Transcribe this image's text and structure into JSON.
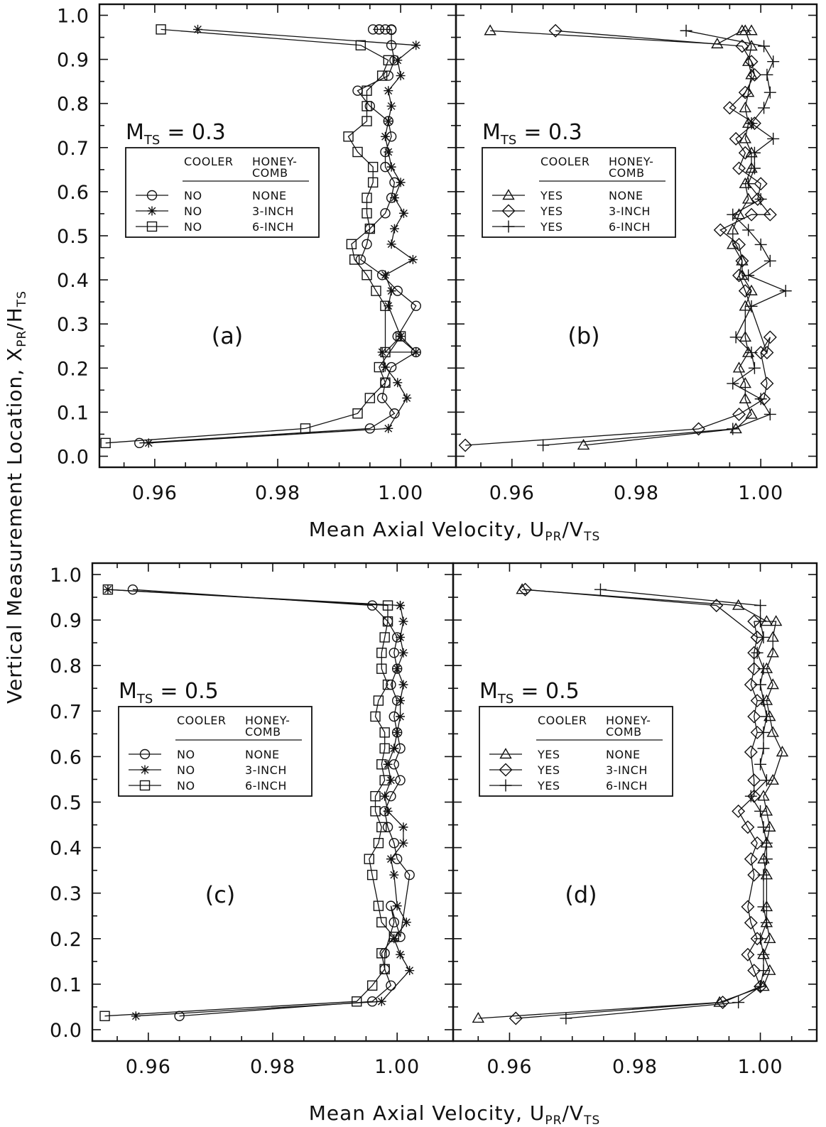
{
  "figure": {
    "ylabel": "Vertical Measurement Location, X_PR/H_TS",
    "xlabel": "Mean Axial Velocity, U_PR/V_TS"
  },
  "chart_data": [
    {
      "type": "line",
      "panel_label": "(a)",
      "mts_prefix": "M",
      "mts_sub": "TS",
      "mts_value": "= 0.3",
      "xlim": [
        0.951,
        1.009
      ],
      "ylim": [
        -0.025,
        1.025
      ],
      "xticks": [
        0.96,
        0.98,
        1.0
      ],
      "xtick_labels": [
        "0.96",
        "0.98",
        "1.00"
      ],
      "yticks": [
        0.0,
        0.1,
        0.2,
        0.3,
        0.4,
        0.5,
        0.6,
        0.7,
        0.8,
        0.9,
        1.0
      ],
      "ytick_labels": [
        "0.0",
        "0.1",
        "0.2",
        "0.3",
        "0.4",
        "0.5",
        "0.6",
        "0.7",
        "0.8",
        "0.9",
        "1.0"
      ],
      "grid": false,
      "legend": {
        "placement": "upper-left",
        "header_cooler": "COOLER",
        "header_honey_1": "HONEY-",
        "header_honey_2": "COMB",
        "rows": [
          {
            "cooler": "NO",
            "honeycomb": "NONE",
            "marker": "circle"
          },
          {
            "cooler": "NO",
            "honeycomb": "3-INCH",
            "marker": "asterisk"
          },
          {
            "cooler": "NO",
            "honeycomb": "6-INCH",
            "marker": "square"
          }
        ]
      },
      "series": [
        {
          "marker": "circle",
          "x": [
            0.9575,
            0.995,
            0.999,
            0.997,
            0.9975,
            0.9985,
            1.0025,
            0.9995,
            1.0025,
            0.9995,
            0.997,
            0.9935,
            0.9945,
            0.995,
            0.9975,
            0.9985,
            0.999,
            0.9975,
            0.9975,
            0.9985,
            0.998,
            0.995,
            0.993,
            0.998,
            0.999,
            0.9985,
            0.9985,
            0.9975,
            0.9985,
            0.9955,
            0.9965,
            0.9965
          ],
          "y": [
            0.03,
            0.063,
            0.097,
            0.132,
            0.167,
            0.202,
            0.236,
            0.272,
            0.341,
            0.375,
            0.411,
            0.446,
            0.481,
            0.516,
            0.551,
            0.586,
            0.621,
            0.656,
            0.69,
            0.725,
            0.76,
            0.794,
            0.829,
            0.863,
            0.898,
            0.932,
            0.967,
            0.968,
            0.968,
            0.968,
            0.968,
            0.968
          ]
        },
        {
          "marker": "asterisk",
          "x": [
            0.959,
            0.998,
            1.001,
            0.9995,
            0.9975,
            0.997,
            1.0025,
            1.0,
            0.998,
            0.9985,
            0.9975,
            1.002,
            0.9985,
            0.999,
            1.0005,
            0.999,
            1.0,
            0.9985,
            0.998,
            0.9975,
            0.998,
            0.9985,
            0.998,
            1.0,
            0.9995,
            1.0025,
            0.967
          ],
          "y": [
            0.03,
            0.063,
            0.132,
            0.167,
            0.202,
            0.236,
            0.236,
            0.272,
            0.341,
            0.375,
            0.411,
            0.446,
            0.481,
            0.516,
            0.551,
            0.586,
            0.621,
            0.656,
            0.69,
            0.725,
            0.76,
            0.794,
            0.829,
            0.863,
            0.898,
            0.932,
            0.968
          ]
        },
        {
          "marker": "square",
          "x": [
            0.952,
            0.9845,
            0.993,
            0.995,
            0.9975,
            0.9965,
            1.0,
            0.9975,
            0.9975,
            0.996,
            0.9945,
            0.9925,
            0.992,
            0.995,
            0.9945,
            0.9945,
            0.9955,
            0.9955,
            0.993,
            0.9915,
            0.9945,
            0.9945,
            0.9945,
            0.997,
            0.998,
            0.9935,
            0.961
          ],
          "y": [
            0.03,
            0.063,
            0.097,
            0.132,
            0.167,
            0.202,
            0.272,
            0.236,
            0.341,
            0.375,
            0.411,
            0.446,
            0.481,
            0.516,
            0.551,
            0.586,
            0.621,
            0.656,
            0.69,
            0.725,
            0.76,
            0.794,
            0.829,
            0.863,
            0.898,
            0.932,
            0.968
          ]
        }
      ]
    },
    {
      "type": "line",
      "panel_label": "(b)",
      "mts_prefix": "M",
      "mts_sub": "TS",
      "mts_value": "= 0.3",
      "xlim": [
        0.951,
        1.009
      ],
      "ylim": [
        -0.025,
        1.025
      ],
      "xticks": [
        0.96,
        0.98,
        1.0
      ],
      "xtick_labels": [
        "0.96",
        "0.98",
        "1.00"
      ],
      "yticks": [
        0.0,
        0.1,
        0.2,
        0.3,
        0.4,
        0.5,
        0.6,
        0.7,
        0.8,
        0.9,
        1.0
      ],
      "ytick_labels": [],
      "grid": false,
      "legend": {
        "placement": "upper-left",
        "header_cooler": "COOLER",
        "header_honey_1": "HONEY-",
        "header_honey_2": "COMB",
        "rows": [
          {
            "cooler": "YES",
            "honeycomb": "NONE",
            "marker": "triangle"
          },
          {
            "cooler": "YES",
            "honeycomb": "3-INCH",
            "marker": "diamond"
          },
          {
            "cooler": "YES",
            "honeycomb": "6-INCH",
            "marker": "plus"
          }
        ]
      },
      "series": [
        {
          "marker": "triangle",
          "x": [
            0.9715,
            0.996,
            0.9985,
            0.9975,
            0.9975,
            0.9965,
            0.998,
            0.9975,
            0.9975,
            0.9985,
            0.997,
            0.997,
            0.9955,
            0.9955,
            0.9965,
            0.998,
            0.9975,
            0.9985,
            0.9985,
            0.9975,
            0.998,
            0.9975,
            0.998,
            0.9985,
            0.998,
            0.9985,
            0.9975,
            0.9985,
            0.997,
            0.993,
            0.9565
          ],
          "y": [
            0.025,
            0.062,
            0.095,
            0.13,
            0.165,
            0.2,
            0.235,
            0.27,
            0.34,
            0.375,
            0.41,
            0.443,
            0.48,
            0.513,
            0.548,
            0.583,
            0.618,
            0.653,
            0.688,
            0.72,
            0.755,
            0.79,
            0.825,
            0.865,
            0.895,
            0.93,
            0.965,
            0.965,
            0.965,
            0.935,
            0.965
          ]
        },
        {
          "marker": "diamond",
          "x": [
            0.9525,
            0.99,
            0.9965,
            1.0005,
            1.001,
            1.0,
            1.0015,
            1.001,
            0.9975,
            0.9965,
            0.997,
            0.9965,
            0.9935,
            0.9985,
            1.0015,
            0.9995,
            1.0,
            0.9965,
            0.9975,
            0.996,
            0.999,
            0.995,
            0.9975,
            0.999,
            0.9985,
            0.997,
            0.967
          ],
          "y": [
            0.025,
            0.062,
            0.095,
            0.13,
            0.165,
            0.235,
            0.27,
            0.235,
            0.375,
            0.41,
            0.443,
            0.48,
            0.513,
            0.548,
            0.548,
            0.583,
            0.618,
            0.653,
            0.688,
            0.72,
            0.755,
            0.79,
            0.825,
            0.865,
            0.895,
            0.93,
            0.965
          ]
        },
        {
          "marker": "plus",
          "x": [
            0.965,
            0.9955,
            1.0015,
            1.0,
            0.9955,
            0.999,
            0.9985,
            0.996,
            0.9985,
            1.004,
            0.998,
            1.0015,
            1.0,
            0.998,
            0.9955,
            1.0,
            0.998,
            0.999,
            0.999,
            1.002,
            0.9985,
            1.0005,
            1.0015,
            1.001,
            1.002,
            1.0005,
            0.988
          ],
          "y": [
            0.025,
            0.062,
            0.095,
            0.13,
            0.165,
            0.2,
            0.235,
            0.27,
            0.34,
            0.375,
            0.41,
            0.443,
            0.48,
            0.513,
            0.548,
            0.583,
            0.618,
            0.653,
            0.688,
            0.72,
            0.755,
            0.79,
            0.825,
            0.865,
            0.895,
            0.93,
            0.965
          ]
        }
      ]
    },
    {
      "type": "line",
      "panel_label": "(c)",
      "mts_prefix": "M",
      "mts_sub": "TS",
      "mts_value": "= 0.5",
      "xlim": [
        0.951,
        1.009
      ],
      "ylim": [
        -0.025,
        1.025
      ],
      "xticks": [
        0.96,
        0.98,
        1.0
      ],
      "xtick_labels": [
        "0.96",
        "0.98",
        "1.00"
      ],
      "yticks": [
        0.0,
        0.1,
        0.2,
        0.3,
        0.4,
        0.5,
        0.6,
        0.7,
        0.8,
        0.9,
        1.0
      ],
      "ytick_labels": [
        "0.0",
        "0.1",
        "0.2",
        "0.3",
        "0.4",
        "0.5",
        "0.6",
        "0.7",
        "0.8",
        "0.9",
        "1.0"
      ],
      "grid": false,
      "legend": {
        "placement": "upper-left",
        "header_cooler": "COOLER",
        "header_honey_1": "HONEY-",
        "header_honey_2": "COMB",
        "rows": [
          {
            "cooler": "NO",
            "honeycomb": "NONE",
            "marker": "circle"
          },
          {
            "cooler": "NO",
            "honeycomb": "3-INCH",
            "marker": "asterisk"
          },
          {
            "cooler": "NO",
            "honeycomb": "6-INCH",
            "marker": "square"
          }
        ]
      },
      "series": [
        {
          "marker": "circle",
          "x": [
            0.965,
            0.996,
            0.999,
            0.998,
            0.998,
            0.9995,
            0.999,
            1.0005,
            1.002,
            1.0,
            0.9995,
            0.9985,
            0.998,
            0.999,
            1.0005,
            0.9995,
            1.0005,
            1.0,
            0.9995,
            1.0,
            0.999,
            1.0,
            0.9995,
            1.0,
            0.9985,
            0.996,
            0.9575
          ],
          "y": [
            0.03,
            0.062,
            0.097,
            0.133,
            0.168,
            0.236,
            0.272,
            0.204,
            0.34,
            0.375,
            0.41,
            0.445,
            0.48,
            0.513,
            0.548,
            0.583,
            0.618,
            0.653,
            0.688,
            0.723,
            0.758,
            0.793,
            0.828,
            0.862,
            0.897,
            0.932,
            0.967
          ]
        },
        {
          "marker": "asterisk",
          "x": [
            0.958,
            0.9975,
            1.002,
            1.0005,
            0.9995,
            1.0015,
            1.0,
            0.9995,
            0.999,
            1.001,
            1.001,
            0.9985,
            0.998,
            0.999,
            0.9985,
            0.9995,
            1.0,
            1.0005,
            1.0005,
            1.001,
            1.0,
            1.001,
            1.0005,
            1.001,
            1.0005,
            1.0005,
            0.9535
          ],
          "y": [
            0.03,
            0.062,
            0.13,
            0.165,
            0.2,
            0.236,
            0.272,
            0.34,
            0.375,
            0.41,
            0.445,
            0.48,
            0.513,
            0.548,
            0.583,
            0.618,
            0.653,
            0.688,
            0.723,
            0.758,
            0.793,
            0.828,
            0.862,
            0.897,
            0.932,
            0.932,
            0.967
          ]
        },
        {
          "marker": "square",
          "x": [
            0.953,
            0.9935,
            0.996,
            0.998,
            0.9975,
            0.9995,
            0.9975,
            0.997,
            0.996,
            0.9955,
            0.997,
            0.9975,
            0.9965,
            0.9965,
            0.998,
            0.9975,
            0.998,
            0.998,
            0.9965,
            0.997,
            0.9985,
            0.9975,
            0.9975,
            0.998,
            0.9985,
            0.9985,
            0.9535
          ],
          "y": [
            0.03,
            0.062,
            0.097,
            0.133,
            0.168,
            0.204,
            0.236,
            0.272,
            0.34,
            0.375,
            0.41,
            0.445,
            0.48,
            0.513,
            0.548,
            0.583,
            0.618,
            0.653,
            0.688,
            0.723,
            0.758,
            0.793,
            0.828,
            0.862,
            0.897,
            0.932,
            0.967
          ]
        }
      ]
    },
    {
      "type": "line",
      "panel_label": "(d)",
      "mts_prefix": "M",
      "mts_sub": "TS",
      "mts_value": "= 0.5",
      "xlim": [
        0.951,
        1.009
      ],
      "ylim": [
        -0.025,
        1.025
      ],
      "xticks": [
        0.96,
        0.98,
        1.0
      ],
      "xtick_labels": [
        "0.96",
        "0.98",
        "1.00"
      ],
      "yticks": [
        0.0,
        0.1,
        0.2,
        0.3,
        0.4,
        0.5,
        0.6,
        0.7,
        0.8,
        0.9,
        1.0
      ],
      "ytick_labels": [],
      "grid": false,
      "legend": {
        "placement": "upper-left",
        "header_cooler": "COOLER",
        "header_honey_1": "HONEY-",
        "header_honey_2": "COMB",
        "rows": [
          {
            "cooler": "YES",
            "honeycomb": "NONE",
            "marker": "triangle"
          },
          {
            "cooler": "YES",
            "honeycomb": "3-INCH",
            "marker": "diamond"
          },
          {
            "cooler": "YES",
            "honeycomb": "6-INCH",
            "marker": "plus"
          }
        ]
      },
      "series": [
        {
          "marker": "triangle",
          "x": [
            0.955,
            0.9935,
            1.0005,
            1.0015,
            1.0005,
            1.0015,
            1.001,
            1.001,
            1.001,
            1.0005,
            1.001,
            1.0015,
            1.001,
            1.0005,
            1.002,
            1.0035,
            1.002,
            1.0015,
            1.001,
            1.002,
            1.001,
            1.002,
            1.002,
            1.0025,
            1.001,
            0.9965,
            0.962
          ],
          "y": [
            0.025,
            0.06,
            0.095,
            0.13,
            0.165,
            0.2,
            0.235,
            0.27,
            0.34,
            0.375,
            0.41,
            0.445,
            0.48,
            0.513,
            0.548,
            0.61,
            0.653,
            0.688,
            0.723,
            0.758,
            0.793,
            0.828,
            0.862,
            0.897,
            0.897,
            0.932,
            0.967
          ]
        },
        {
          "marker": "diamond",
          "x": [
            0.961,
            0.994,
            1.0,
            0.999,
            0.998,
            0.9995,
            0.9985,
            0.998,
            0.999,
            0.9985,
            0.9995,
            0.998,
            0.9965,
            0.999,
            0.999,
            0.9985,
            0.9995,
            0.999,
            0.9995,
            0.9985,
            0.999,
            0.999,
            0.9995,
            0.999,
            0.9995,
            0.993,
            0.9625
          ],
          "y": [
            0.025,
            0.06,
            0.095,
            0.13,
            0.165,
            0.2,
            0.235,
            0.27,
            0.34,
            0.375,
            0.41,
            0.445,
            0.48,
            0.513,
            0.548,
            0.61,
            0.653,
            0.688,
            0.723,
            0.758,
            0.793,
            0.828,
            0.862,
            0.897,
            0.862,
            0.932,
            0.967
          ]
        },
        {
          "marker": "plus",
          "x": [
            0.969,
            0.9965,
            1.0,
            1.0005,
            1.0005,
            1.0,
            1.001,
            1.0005,
            1.0005,
            1.001,
            1.001,
            1.0005,
            1.0,
            0.9985,
            1.001,
            1.0,
            1.0005,
            1.0005,
            1.001,
            1.0005,
            1.0,
            1.0005,
            0.9995,
            1.0005,
            1.0,
            1.0,
            0.9745
          ],
          "y": [
            0.025,
            0.06,
            0.095,
            0.13,
            0.165,
            0.2,
            0.235,
            0.27,
            0.34,
            0.375,
            0.41,
            0.445,
            0.48,
            0.513,
            0.548,
            0.583,
            0.618,
            0.653,
            0.688,
            0.723,
            0.758,
            0.793,
            0.828,
            0.862,
            0.897,
            0.932,
            0.967
          ]
        }
      ]
    }
  ]
}
